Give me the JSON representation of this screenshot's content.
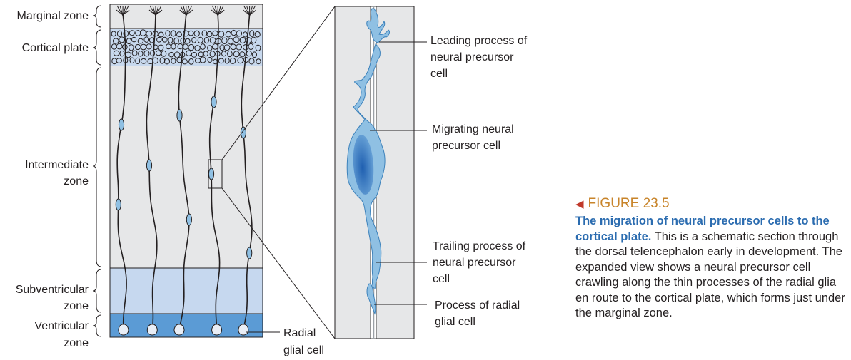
{
  "zones": {
    "marginal": "Marginal zone",
    "cortical": "Cortical plate",
    "intermediate": [
      "Intermediate",
      "zone"
    ],
    "subventricular": [
      "Subventricular",
      "zone"
    ],
    "ventricular": [
      "Ventricular",
      "zone"
    ]
  },
  "callouts": {
    "radial_glial_cell": [
      "Radial",
      "glial cell"
    ],
    "leading_process": [
      "Leading process of",
      "neural precursor",
      "cell"
    ],
    "migrating_cell": [
      "Migrating neural",
      "precursor cell"
    ],
    "trailing_process": [
      "Trailing process of",
      "neural precursor",
      "cell"
    ],
    "radial_process": [
      "Process of radial",
      "glial cell"
    ]
  },
  "figure": {
    "number": "FIGURE 23.5",
    "title": "The migration of neural precursor cells to the cortical plate.",
    "text": "This is a schematic section through the dorsal telencephalon early in development. The expanded view shows a neural precursor cell crawling along the thin processes of the radial glia en route to the cortical plate, which forms just under the marginal zone."
  },
  "colors": {
    "background_gray": "#e6e7e8",
    "cortical_plate": "#c8d9ee",
    "subventricular": "#c6d8ef",
    "ventricular": "#5b9bd5",
    "cell_blue": "#8fc0e3",
    "nucleus_blue": "#2f6fb8",
    "figure_number": "#c8842a",
    "caption_title": "#2b6cb0"
  }
}
